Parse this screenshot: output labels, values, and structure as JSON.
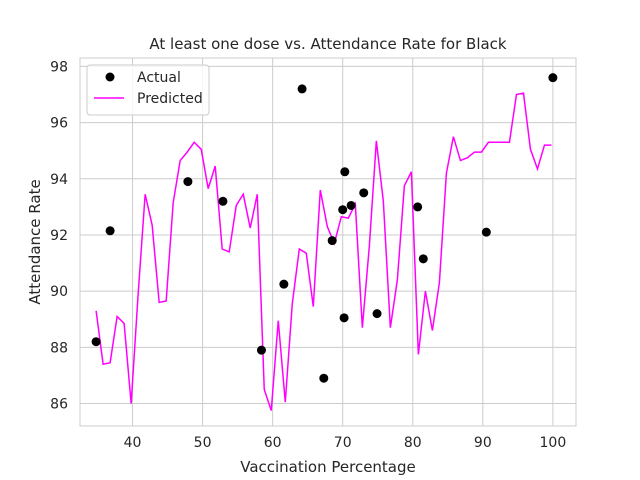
{
  "chart_data": {
    "type": "scatter+line",
    "title": "At least one dose vs. Attendance Rate for Black",
    "xlabel": "Vaccination Percentage",
    "ylabel": "Attendance Rate",
    "xlim": [
      32.5,
      103.3
    ],
    "ylim": [
      85.2,
      98.3
    ],
    "xticks": [
      40,
      50,
      60,
      70,
      80,
      90,
      100
    ],
    "yticks": [
      86,
      88,
      90,
      92,
      94,
      96,
      98
    ],
    "grid": true,
    "legend": {
      "placement": "top-left",
      "entries": [
        "Actual",
        "Predicted"
      ]
    },
    "colors": {
      "actual": "#000000",
      "predicted": "#ff00ff",
      "grid": "#cccccc",
      "frame": "#cccccc"
    },
    "series": [
      {
        "name": "Actual",
        "kind": "scatter",
        "points": [
          [
            34.8,
            88.2
          ],
          [
            36.8,
            92.15
          ],
          [
            47.9,
            93.9
          ],
          [
            52.9,
            93.2
          ],
          [
            58.4,
            87.9
          ],
          [
            61.6,
            90.25
          ],
          [
            64.2,
            97.2
          ],
          [
            67.3,
            86.9
          ],
          [
            68.5,
            91.8
          ],
          [
            70.0,
            92.9
          ],
          [
            70.2,
            89.05
          ],
          [
            70.3,
            94.25
          ],
          [
            71.2,
            93.05
          ],
          [
            73.0,
            93.5
          ],
          [
            74.9,
            89.2
          ],
          [
            80.7,
            93.0
          ],
          [
            81.5,
            91.15
          ],
          [
            90.5,
            92.1
          ],
          [
            100.0,
            97.6
          ]
        ]
      },
      {
        "name": "Predicted",
        "kind": "line",
        "points": [
          [
            34.8,
            89.3
          ],
          [
            35.8,
            87.4
          ],
          [
            36.8,
            87.45
          ],
          [
            37.8,
            89.1
          ],
          [
            38.8,
            88.85
          ],
          [
            39.8,
            86.0
          ],
          [
            40.8,
            89.9
          ],
          [
            41.8,
            93.45
          ],
          [
            42.8,
            92.35
          ],
          [
            43.8,
            89.6
          ],
          [
            44.8,
            89.65
          ],
          [
            45.8,
            93.15
          ],
          [
            46.8,
            94.65
          ],
          [
            47.8,
            94.95
          ],
          [
            48.8,
            95.3
          ],
          [
            49.8,
            95.05
          ],
          [
            50.8,
            93.65
          ],
          [
            51.8,
            94.45
          ],
          [
            52.8,
            91.5
          ],
          [
            53.8,
            91.4
          ],
          [
            54.8,
            93.05
          ],
          [
            55.8,
            93.45
          ],
          [
            56.8,
            92.25
          ],
          [
            57.8,
            93.45
          ],
          [
            58.8,
            86.5
          ],
          [
            59.8,
            85.75
          ],
          [
            60.8,
            88.95
          ],
          [
            61.8,
            86.05
          ],
          [
            62.8,
            89.55
          ],
          [
            63.8,
            91.5
          ],
          [
            64.8,
            91.35
          ],
          [
            65.8,
            89.45
          ],
          [
            66.8,
            93.6
          ],
          [
            67.8,
            92.3
          ],
          [
            68.8,
            91.7
          ],
          [
            69.8,
            92.65
          ],
          [
            70.8,
            92.6
          ],
          [
            71.8,
            93.1
          ],
          [
            72.8,
            88.7
          ],
          [
            73.8,
            91.6
          ],
          [
            74.8,
            95.35
          ],
          [
            75.8,
            93.2
          ],
          [
            76.8,
            88.7
          ],
          [
            77.8,
            90.4
          ],
          [
            78.8,
            93.75
          ],
          [
            79.8,
            94.25
          ],
          [
            80.8,
            87.75
          ],
          [
            81.8,
            90.0
          ],
          [
            82.8,
            88.6
          ],
          [
            83.8,
            90.3
          ],
          [
            84.8,
            94.2
          ],
          [
            85.8,
            95.5
          ],
          [
            86.8,
            94.65
          ],
          [
            87.8,
            94.75
          ],
          [
            88.8,
            94.95
          ],
          [
            89.8,
            94.95
          ],
          [
            90.8,
            95.3
          ],
          [
            91.8,
            95.3
          ],
          [
            92.8,
            95.3
          ],
          [
            93.8,
            95.3
          ],
          [
            94.8,
            97.0
          ],
          [
            95.8,
            97.05
          ],
          [
            96.8,
            95.05
          ],
          [
            97.8,
            94.35
          ],
          [
            98.8,
            95.2
          ],
          [
            99.8,
            95.2
          ]
        ]
      }
    ]
  }
}
